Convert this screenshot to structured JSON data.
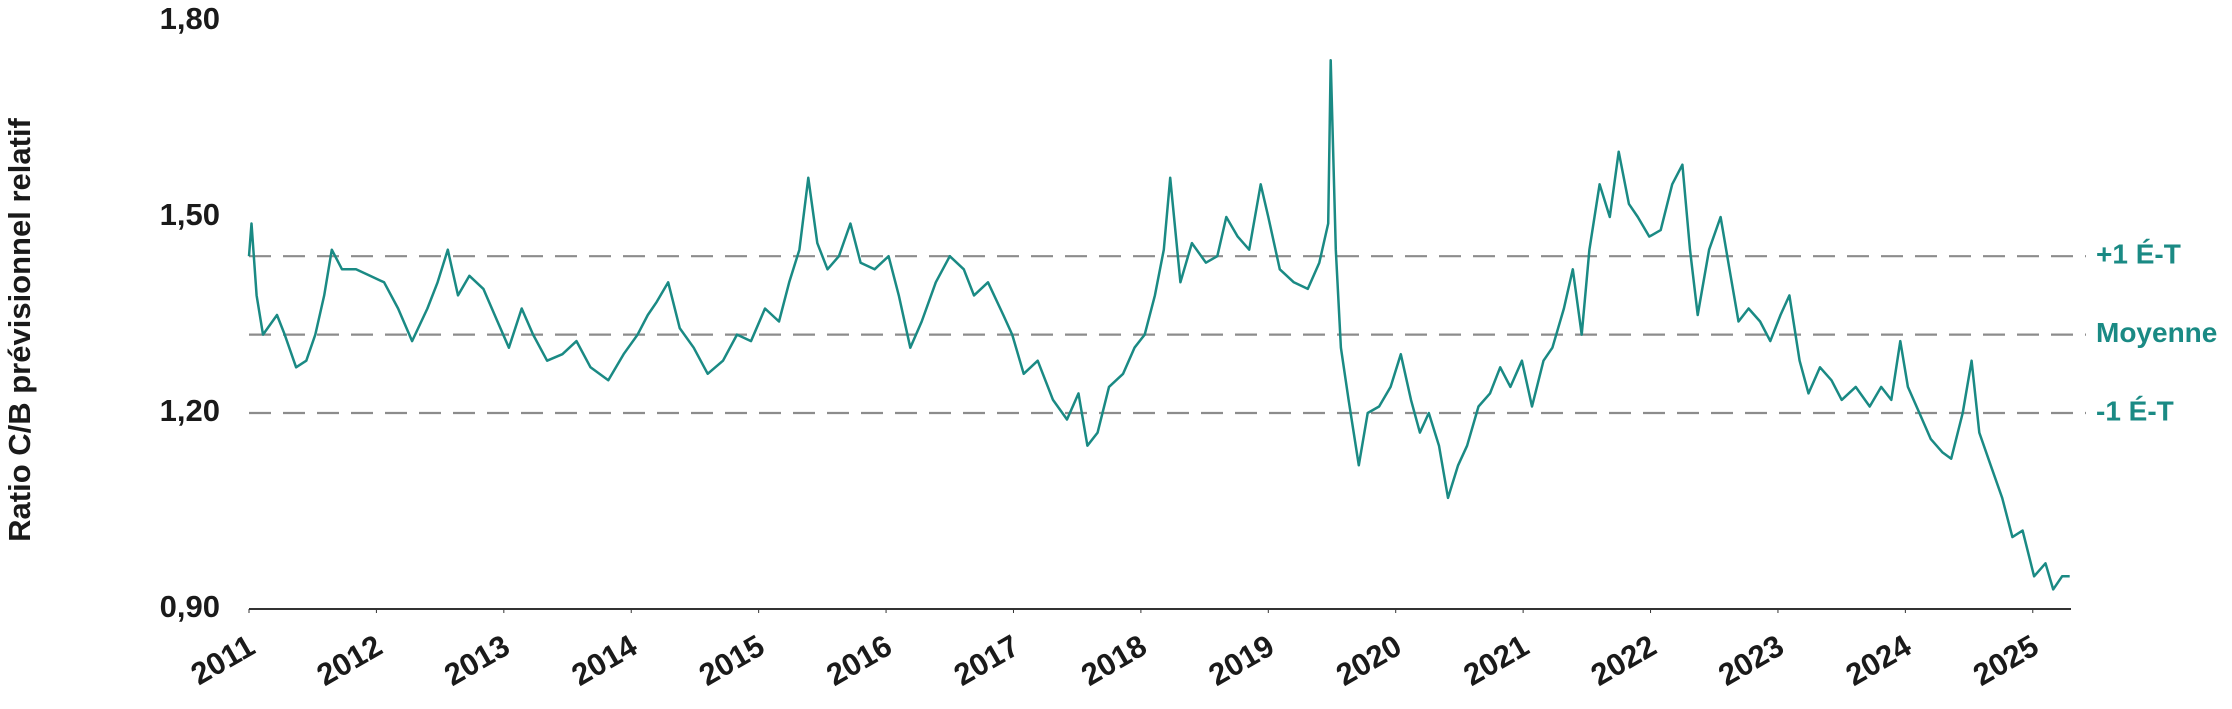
{
  "chart_data": {
    "type": "line",
    "y_label": "Ratio C/B prévisionnel relatif",
    "color": "#1a8a84",
    "x": [
      2011.0,
      2011.02,
      2011.06,
      2011.11,
      2011.22,
      2011.28,
      2011.37,
      2011.45,
      2011.52,
      2011.59,
      2011.65,
      2011.73,
      2011.84,
      2011.95,
      2012.06,
      2012.17,
      2012.28,
      2012.4,
      2012.48,
      2012.56,
      2012.64,
      2012.73,
      2012.84,
      2012.95,
      2013.04,
      2013.14,
      2013.23,
      2013.34,
      2013.46,
      2013.57,
      2013.68,
      2013.82,
      2013.94,
      2014.05,
      2014.13,
      2014.2,
      2014.29,
      2014.38,
      2014.49,
      2014.6,
      2014.72,
      2014.83,
      2014.94,
      2015.05,
      2015.16,
      2015.24,
      2015.32,
      2015.39,
      2015.46,
      2015.54,
      2015.63,
      2015.72,
      2015.8,
      2015.91,
      2016.02,
      2016.1,
      2016.19,
      2016.28,
      2016.39,
      2016.5,
      2016.61,
      2016.69,
      2016.8,
      2016.92,
      2016.99,
      2017.08,
      2017.19,
      2017.31,
      2017.42,
      2017.51,
      2017.58,
      2017.66,
      2017.75,
      2017.86,
      2017.95,
      2018.03,
      2018.11,
      2018.18,
      2018.23,
      2018.31,
      2018.4,
      2018.51,
      2018.6,
      2018.67,
      2018.76,
      2018.85,
      2018.94,
      2019.0,
      2019.09,
      2019.2,
      2019.31,
      2019.4,
      2019.47,
      2019.49,
      2019.53,
      2019.57,
      2019.63,
      2019.71,
      2019.78,
      2019.87,
      2019.96,
      2020.04,
      2020.12,
      2020.19,
      2020.26,
      2020.34,
      2020.41,
      2020.49,
      2020.56,
      2020.65,
      2020.74,
      2020.82,
      2020.9,
      2020.99,
      2021.07,
      2021.16,
      2021.23,
      2021.32,
      2021.39,
      2021.46,
      2021.52,
      2021.6,
      2021.68,
      2021.75,
      2021.83,
      2021.9,
      2021.99,
      2022.08,
      2022.17,
      2022.25,
      2022.31,
      2022.37,
      2022.46,
      2022.55,
      2022.62,
      2022.69,
      2022.77,
      2022.86,
      2022.94,
      2023.02,
      2023.09,
      2023.17,
      2023.24,
      2023.33,
      2023.42,
      2023.5,
      2023.61,
      2023.72,
      2023.81,
      2023.89,
      2023.96,
      2024.02,
      2024.11,
      2024.2,
      2024.29,
      2024.36,
      2024.45,
      2024.52,
      2024.58,
      2024.67,
      2024.76,
      2024.84,
      2024.92,
      2025.01,
      2025.1,
      2025.16,
      2025.23,
      2025.29
    ],
    "values": [
      1.44,
      1.49,
      1.38,
      1.32,
      1.35,
      1.32,
      1.27,
      1.28,
      1.32,
      1.38,
      1.45,
      1.42,
      1.42,
      1.41,
      1.4,
      1.36,
      1.31,
      1.36,
      1.4,
      1.45,
      1.38,
      1.41,
      1.39,
      1.34,
      1.3,
      1.36,
      1.32,
      1.28,
      1.29,
      1.31,
      1.27,
      1.25,
      1.29,
      1.32,
      1.35,
      1.37,
      1.4,
      1.33,
      1.3,
      1.26,
      1.28,
      1.32,
      1.31,
      1.36,
      1.34,
      1.4,
      1.45,
      1.56,
      1.46,
      1.42,
      1.44,
      1.49,
      1.43,
      1.42,
      1.44,
      1.38,
      1.3,
      1.34,
      1.4,
      1.44,
      1.42,
      1.38,
      1.4,
      1.35,
      1.32,
      1.26,
      1.28,
      1.22,
      1.19,
      1.23,
      1.15,
      1.17,
      1.24,
      1.26,
      1.3,
      1.32,
      1.38,
      1.45,
      1.56,
      1.4,
      1.46,
      1.43,
      1.44,
      1.5,
      1.47,
      1.45,
      1.55,
      1.5,
      1.42,
      1.4,
      1.39,
      1.43,
      1.49,
      1.74,
      1.45,
      1.3,
      1.22,
      1.12,
      1.2,
      1.21,
      1.24,
      1.29,
      1.22,
      1.17,
      1.2,
      1.15,
      1.07,
      1.12,
      1.15,
      1.21,
      1.23,
      1.27,
      1.24,
      1.28,
      1.21,
      1.28,
      1.3,
      1.36,
      1.42,
      1.32,
      1.45,
      1.55,
      1.5,
      1.6,
      1.52,
      1.5,
      1.47,
      1.48,
      1.55,
      1.58,
      1.45,
      1.35,
      1.45,
      1.5,
      1.42,
      1.34,
      1.36,
      1.34,
      1.31,
      1.35,
      1.38,
      1.28,
      1.23,
      1.27,
      1.25,
      1.22,
      1.24,
      1.21,
      1.24,
      1.22,
      1.31,
      1.24,
      1.2,
      1.16,
      1.14,
      1.13,
      1.2,
      1.28,
      1.17,
      1.12,
      1.07,
      1.01,
      1.02,
      0.95,
      0.97,
      0.93,
      0.95,
      0.95
    ],
    "xlim": [
      2011,
      2025.3
    ],
    "xticks": [
      2011,
      2012,
      2013,
      2014,
      2015,
      2016,
      2017,
      2018,
      2019,
      2020,
      2021,
      2022,
      2023,
      2024,
      2025
    ],
    "ylim": [
      0.9,
      1.8
    ],
    "yticks": [
      {
        "value": 0.9,
        "label": "0,90"
      },
      {
        "value": 1.2,
        "label": "1,20"
      },
      {
        "value": 1.5,
        "label": "1,50"
      },
      {
        "value": 1.8,
        "label": "1,80"
      }
    ],
    "reference_line_color": "#8c8c8c",
    "reference_lines": [
      {
        "value": 1.44,
        "label": "+1 É-T"
      },
      {
        "value": 1.32,
        "label": "Moyenne"
      },
      {
        "value": 1.2,
        "label": "-1 É-T"
      }
    ]
  }
}
